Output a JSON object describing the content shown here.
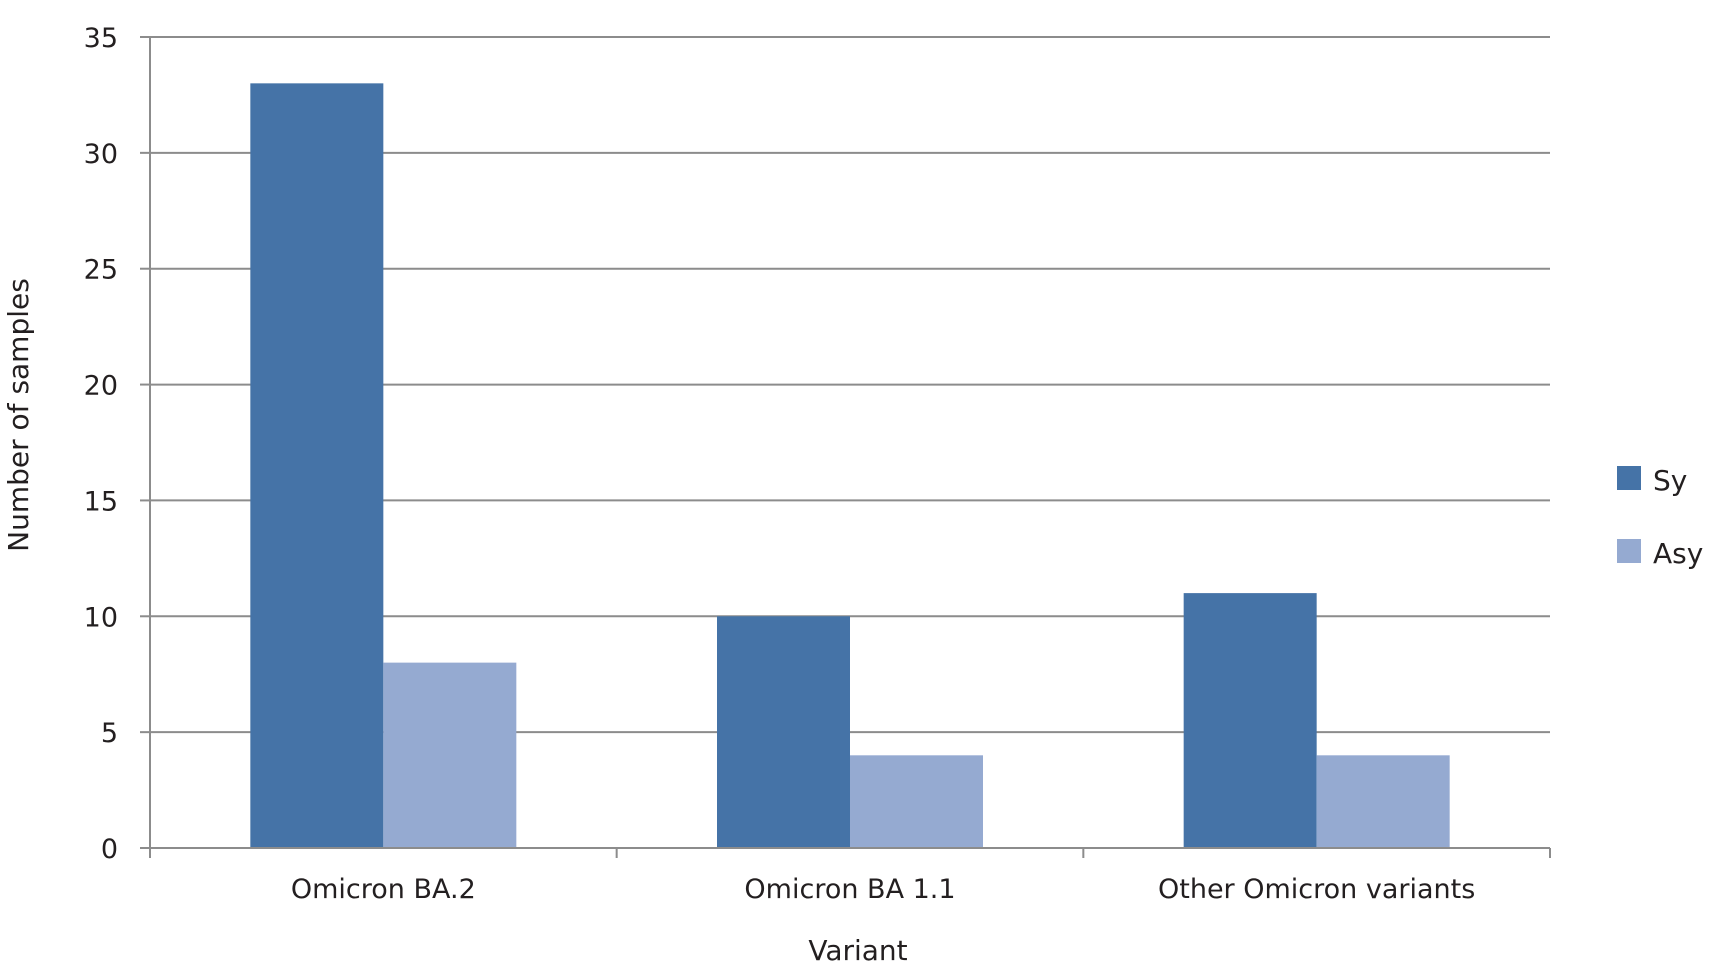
{
  "chart_data": {
    "type": "bar",
    "categories": [
      "Omicron BA.2",
      "Omicron BA 1.1",
      "Other Omicron variants"
    ],
    "series": [
      {
        "name": "Sy",
        "values": [
          33,
          10,
          11
        ],
        "color": "#4573a7"
      },
      {
        "name": "Asy",
        "values": [
          8,
          4,
          4
        ],
        "color": "#95aad1"
      }
    ],
    "title": "",
    "xlabel": "Variant",
    "ylabel": "Number of samples",
    "ylim": [
      0,
      35
    ],
    "yticks": [
      0,
      5,
      10,
      15,
      20,
      25,
      30,
      35
    ],
    "grid": true,
    "legend": "right"
  }
}
